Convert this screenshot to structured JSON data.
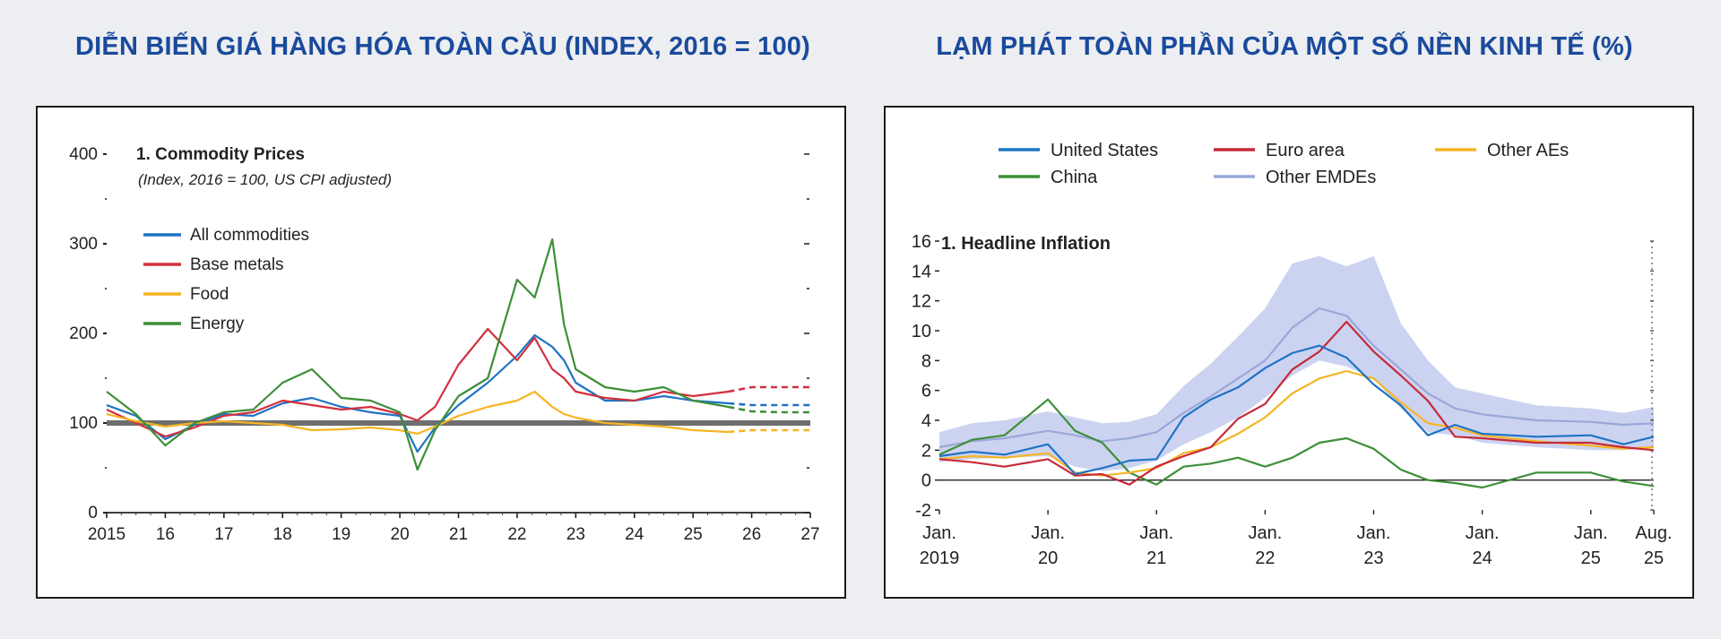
{
  "headings": {
    "left": "DIỄN BIẾN GIÁ HÀNG HÓA TOÀN CẦU (INDEX, 2016 = 100)",
    "right": "LẠM PHÁT TOÀN PHẦN CỦA MỘT SỐ NỀN KINH TẾ (%)"
  },
  "chart_data": [
    {
      "type": "line",
      "title": "1. Commodity Prices",
      "subtitle": "(Index, 2016 = 100, US CPI adjusted)",
      "xlabel": "",
      "ylabel": "",
      "ylim": [
        0,
        400
      ],
      "yticks": [
        0,
        100,
        200,
        300,
        400
      ],
      "xlim": [
        2015,
        2027
      ],
      "xtick_values": [
        2015,
        2016,
        2017,
        2018,
        2019,
        2020,
        2021,
        2022,
        2023,
        2024,
        2025,
        2026,
        2027
      ],
      "xtick_labels": [
        "2015",
        "16",
        "17",
        "18",
        "19",
        "20",
        "21",
        "22",
        "23",
        "24",
        "25",
        "26",
        "27"
      ],
      "reference_line": 100,
      "forecast_from": 2025.6,
      "legend_position": "top-left",
      "colors": {
        "All commodities": "#1f73c4",
        "Base metals": "#d2303d",
        "Food": "#f5b523",
        "Energy": "#3d8f37",
        "reference": "#6e6e6e"
      },
      "series": [
        {
          "name": "All commodities",
          "x": [
            2015,
            2015.5,
            2016,
            2016.5,
            2017,
            2017.5,
            2018,
            2018.5,
            2019,
            2019.5,
            2020,
            2020.3,
            2020.6,
            2021,
            2021.5,
            2022,
            2022.3,
            2022.6,
            2022.8,
            2023,
            2023.5,
            2024,
            2024.5,
            2025,
            2025.6
          ],
          "values": [
            120,
            108,
            82,
            98,
            110,
            108,
            122,
            128,
            118,
            112,
            108,
            68,
            95,
            120,
            145,
            175,
            198,
            185,
            170,
            145,
            125,
            125,
            130,
            125,
            122
          ]
        },
        {
          "name": "Base metals",
          "x": [
            2015,
            2015.5,
            2016,
            2016.5,
            2017,
            2017.5,
            2018,
            2018.5,
            2019,
            2019.5,
            2020,
            2020.3,
            2020.6,
            2021,
            2021.5,
            2022,
            2022.3,
            2022.6,
            2022.8,
            2023,
            2023.5,
            2024,
            2024.5,
            2025,
            2025.6
          ],
          "values": [
            115,
            100,
            85,
            95,
            108,
            112,
            125,
            120,
            115,
            118,
            110,
            103,
            118,
            165,
            205,
            170,
            195,
            160,
            150,
            135,
            128,
            125,
            135,
            130,
            135
          ]
        },
        {
          "name": "Food",
          "x": [
            2015,
            2015.5,
            2016,
            2016.5,
            2017,
            2017.5,
            2018,
            2018.5,
            2019,
            2019.5,
            2020,
            2020.3,
            2020.6,
            2021,
            2021.5,
            2022,
            2022.3,
            2022.6,
            2022.8,
            2023,
            2023.5,
            2024,
            2024.5,
            2025,
            2025.6
          ],
          "values": [
            110,
            102,
            96,
            100,
            102,
            100,
            98,
            92,
            93,
            95,
            92,
            88,
            96,
            108,
            118,
            125,
            135,
            118,
            110,
            106,
            100,
            98,
            96,
            92,
            90
          ]
        },
        {
          "name": "Energy",
          "x": [
            2015,
            2015.5,
            2016,
            2016.5,
            2017,
            2017.5,
            2018,
            2018.5,
            2019,
            2019.5,
            2020,
            2020.3,
            2020.6,
            2021,
            2021.5,
            2022,
            2022.3,
            2022.6,
            2022.8,
            2023,
            2023.5,
            2024,
            2024.5,
            2025,
            2025.6
          ],
          "values": [
            135,
            110,
            75,
            100,
            112,
            115,
            145,
            160,
            128,
            125,
            112,
            48,
            92,
            130,
            150,
            260,
            240,
            305,
            210,
            160,
            140,
            135,
            140,
            125,
            118
          ]
        }
      ],
      "forecast_series": [
        {
          "name": "All commodities",
          "x": [
            2025.6,
            2026,
            2026.5,
            2027
          ],
          "values": [
            122,
            120,
            120,
            120
          ]
        },
        {
          "name": "Base metals",
          "x": [
            2025.6,
            2026,
            2026.5,
            2027
          ],
          "values": [
            135,
            140,
            140,
            140
          ]
        },
        {
          "name": "Food",
          "x": [
            2025.6,
            2026,
            2026.5,
            2027
          ],
          "values": [
            90,
            92,
            92,
            92
          ]
        },
        {
          "name": "Energy",
          "x": [
            2025.6,
            2026,
            2026.5,
            2027
          ],
          "values": [
            118,
            113,
            112,
            112
          ]
        }
      ]
    },
    {
      "type": "line",
      "title": "1. Headline Inflation",
      "xlabel": "",
      "ylabel": "",
      "ylim": [
        -2,
        16
      ],
      "yticks": [
        -2,
        0,
        2,
        4,
        6,
        8,
        10,
        12,
        14,
        16
      ],
      "xlim": [
        2019.0,
        2025.58
      ],
      "xtick_values": [
        2019.0,
        2020.0,
        2021.0,
        2022.0,
        2023.0,
        2024.0,
        2025.0,
        2025.58
      ],
      "xtick_labels": [
        [
          "Jan.",
          "2019"
        ],
        [
          "Jan.",
          "20"
        ],
        [
          "Jan.",
          "21"
        ],
        [
          "Jan.",
          "22"
        ],
        [
          "Jan.",
          "23"
        ],
        [
          "Jan.",
          "24"
        ],
        [
          "Jan.",
          "25"
        ],
        [
          "Aug.",
          "25"
        ]
      ],
      "legend_position": "top",
      "colors": {
        "United States": "#1f73c4",
        "Euro area": "#c62a39",
        "Other AEs": "#f5b523",
        "China": "#3d8f37",
        "Other EMDEs": "#9aa7d9",
        "range": "#c3cbee"
      },
      "series": [
        {
          "name": "United States",
          "x": [
            2019,
            2019.3,
            2019.6,
            2020,
            2020.25,
            2020.5,
            2020.75,
            2021,
            2021.25,
            2021.5,
            2021.75,
            2022,
            2022.25,
            2022.5,
            2022.75,
            2023,
            2023.25,
            2023.5,
            2023.75,
            2024,
            2024.5,
            2025,
            2025.3,
            2025.58
          ],
          "values": [
            1.6,
            1.9,
            1.7,
            2.4,
            0.4,
            0.8,
            1.3,
            1.4,
            4.2,
            5.4,
            6.2,
            7.5,
            8.5,
            9.0,
            8.2,
            6.4,
            5.0,
            3.0,
            3.7,
            3.1,
            2.9,
            3.0,
            2.4,
            2.9
          ]
        },
        {
          "name": "Euro area",
          "x": [
            2019,
            2019.3,
            2019.6,
            2020,
            2020.25,
            2020.5,
            2020.75,
            2021,
            2021.25,
            2021.5,
            2021.75,
            2022,
            2022.25,
            2022.5,
            2022.75,
            2023,
            2023.25,
            2023.5,
            2023.75,
            2024,
            2024.5,
            2025,
            2025.3,
            2025.58
          ],
          "values": [
            1.4,
            1.2,
            0.9,
            1.4,
            0.3,
            0.4,
            -0.3,
            0.9,
            1.6,
            2.2,
            4.1,
            5.1,
            7.4,
            8.6,
            10.6,
            8.6,
            7.0,
            5.3,
            2.9,
            2.8,
            2.5,
            2.5,
            2.2,
            2.0
          ]
        },
        {
          "name": "Other AEs",
          "x": [
            2019,
            2019.3,
            2019.6,
            2020,
            2020.25,
            2020.5,
            2020.75,
            2021,
            2021.25,
            2021.5,
            2021.75,
            2022,
            2022.25,
            2022.5,
            2022.75,
            2023,
            2023.25,
            2023.5,
            2023.75,
            2024,
            2024.5,
            2025,
            2025.3,
            2025.58
          ],
          "values": [
            1.4,
            1.6,
            1.5,
            1.8,
            0.5,
            0.3,
            0.5,
            0.8,
            1.8,
            2.2,
            3.1,
            4.2,
            5.8,
            6.8,
            7.3,
            6.8,
            5.2,
            3.8,
            3.5,
            3.0,
            2.6,
            2.3,
            2.1,
            2.2
          ]
        },
        {
          "name": "China",
          "x": [
            2019,
            2019.3,
            2019.6,
            2020,
            2020.25,
            2020.5,
            2020.75,
            2021,
            2021.25,
            2021.5,
            2021.75,
            2022,
            2022.25,
            2022.5,
            2022.75,
            2023,
            2023.25,
            2023.5,
            2023.75,
            2024,
            2024.5,
            2025,
            2025.3,
            2025.58
          ],
          "values": [
            1.7,
            2.7,
            3.0,
            5.4,
            3.3,
            2.5,
            0.5,
            -0.3,
            0.9,
            1.1,
            1.5,
            0.9,
            1.5,
            2.5,
            2.8,
            2.1,
            0.7,
            0.0,
            -0.2,
            -0.5,
            0.5,
            0.5,
            -0.1,
            -0.4
          ]
        },
        {
          "name": "Other EMDEs",
          "x": [
            2019,
            2019.3,
            2019.6,
            2020,
            2020.25,
            2020.5,
            2020.75,
            2021,
            2021.25,
            2021.5,
            2021.75,
            2022,
            2022.25,
            2022.5,
            2022.75,
            2023,
            2023.25,
            2023.5,
            2023.75,
            2024,
            2024.5,
            2025,
            2025.3,
            2025.58
          ],
          "values": [
            2.2,
            2.6,
            2.8,
            3.3,
            3.0,
            2.6,
            2.8,
            3.2,
            4.5,
            5.6,
            6.8,
            8.0,
            10.2,
            11.5,
            11.0,
            9.0,
            7.4,
            5.8,
            4.8,
            4.4,
            4.0,
            3.9,
            3.7,
            3.8
          ]
        }
      ],
      "range_band": {
        "name": "Other EMDEs interquartile range",
        "x": [
          2019,
          2019.3,
          2019.6,
          2020,
          2020.25,
          2020.5,
          2020.75,
          2021,
          2021.25,
          2021.5,
          2021.75,
          2022,
          2022.25,
          2022.5,
          2022.75,
          2023,
          2023.25,
          2023.5,
          2023.75,
          2024,
          2024.5,
          2025,
          2025.3,
          2025.58
        ],
        "low": [
          1.2,
          1.4,
          1.5,
          1.6,
          0.9,
          0.6,
          0.8,
          1.3,
          2.4,
          3.2,
          4.2,
          5.5,
          7.0,
          8.0,
          7.6,
          6.8,
          4.8,
          3.2,
          3.0,
          2.5,
          2.2,
          2.0,
          2.0,
          2.2
        ],
        "high": [
          3.2,
          3.8,
          4.0,
          4.6,
          4.2,
          3.8,
          3.9,
          4.4,
          6.3,
          7.8,
          9.6,
          11.5,
          14.5,
          15.0,
          14.3,
          15.0,
          10.5,
          8.0,
          6.2,
          5.8,
          5.0,
          4.8,
          4.5,
          4.9
        ]
      }
    }
  ]
}
